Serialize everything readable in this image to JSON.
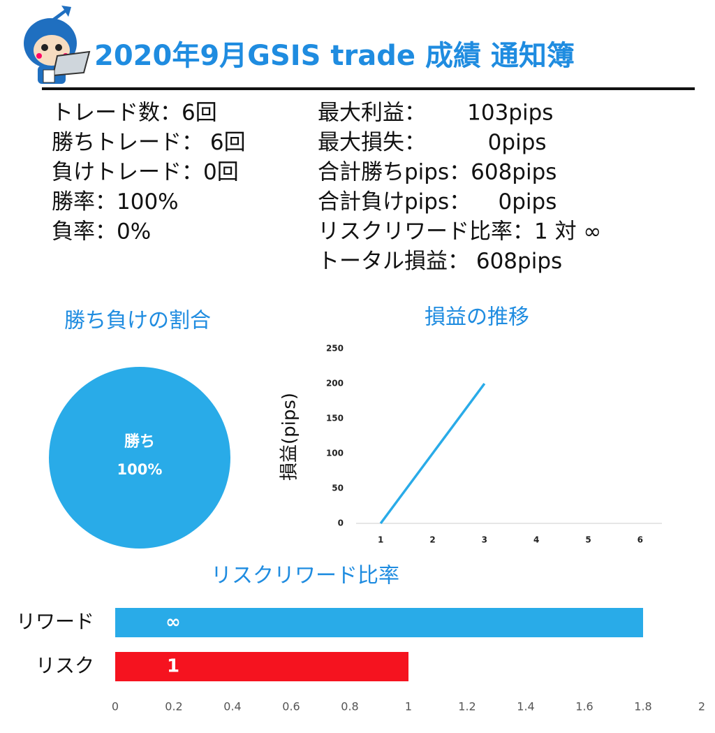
{
  "header": {
    "title": "2020年9月GSIS trade 成績 通知簿"
  },
  "stats": {
    "left": [
      "トレード数：6回",
      "勝ちトレード： 6回",
      "負けトレード：0回",
      "勝率：100%",
      "負率：0%"
    ],
    "right": [
      "最大利益：      103pips",
      "最大損失：         0pips",
      "合計勝ちpips：608pips",
      "合計負けpips：    0pips",
      "リスクリワード比率：1 対 ∞",
      "トータル損益： 608pips"
    ]
  },
  "chart_data": [
    {
      "type": "pie",
      "title": "勝ち負けの割合",
      "categories": [
        "勝ち"
      ],
      "values": [
        100
      ],
      "value_labels": [
        "100%"
      ],
      "colors": [
        "#29abe8"
      ]
    },
    {
      "type": "line",
      "title": "損益の推移",
      "y_label": "損益(pips)",
      "categories": [
        "1",
        "2",
        "3",
        "4",
        "5",
        "6"
      ],
      "series": [
        {
          "color": "#29abe8",
          "values": [
            0,
            100,
            200,
            null,
            null,
            null
          ]
        }
      ],
      "ylim": [
        0,
        250
      ],
      "yticks": [
        0,
        50,
        100,
        150,
        200,
        250
      ],
      "grid": false
    },
    {
      "type": "hbar",
      "title": "リスクリワード比率",
      "categories": [
        "リワード",
        "リスク"
      ],
      "values": [
        1.8,
        1
      ],
      "value_labels": [
        "∞",
        "1"
      ],
      "colors": [
        "#29abe8",
        "#f5131f"
      ],
      "xlim": [
        0,
        2
      ],
      "xticks": [
        0,
        0.2,
        0.4,
        0.6,
        0.8,
        1,
        1.2,
        1.4,
        1.6,
        1.8,
        2
      ],
      "grid": false
    }
  ]
}
